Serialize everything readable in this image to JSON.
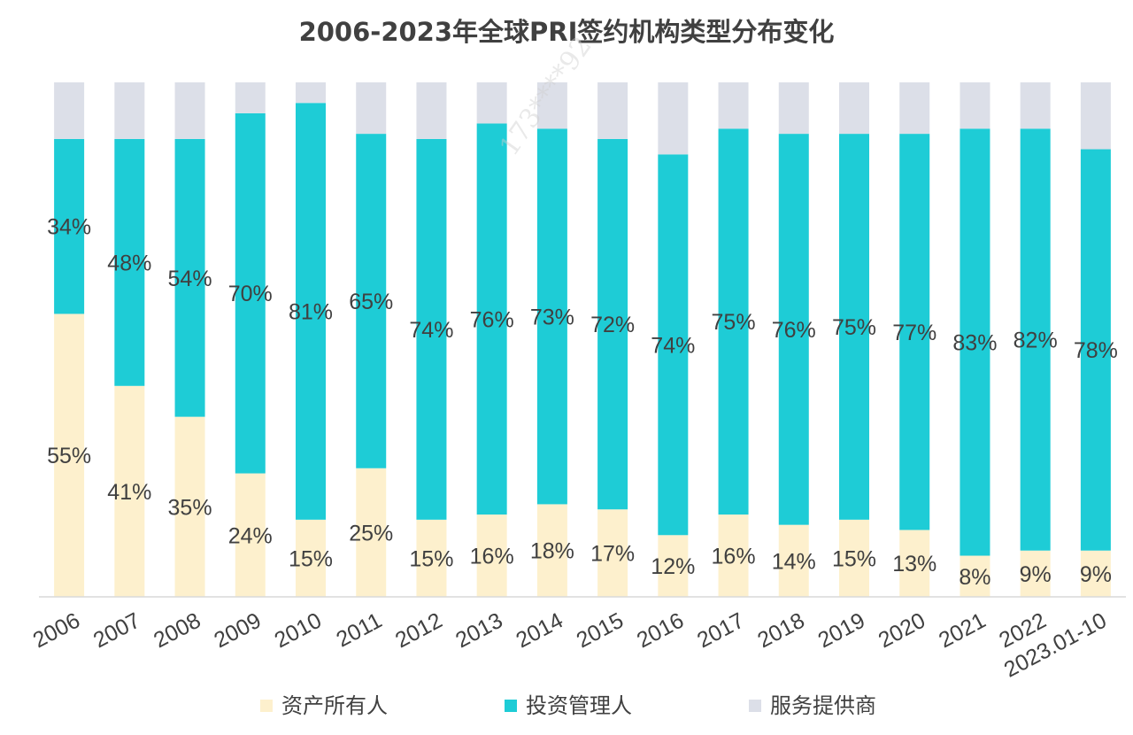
{
  "chart_data": {
    "type": "bar",
    "stacked": true,
    "percent_stacked": true,
    "title": "2006-2023年全球PRI签约机构类型分布变化",
    "categories": [
      "2006",
      "2007",
      "2008",
      "2009",
      "2010",
      "2011",
      "2012",
      "2013",
      "2014",
      "2015",
      "2016",
      "2017",
      "2018",
      "2019",
      "2020",
      "2021",
      "2022",
      "2023.01-10"
    ],
    "series": [
      {
        "name": "资产所有人",
        "color": "#FDF0CD",
        "values": [
          55,
          41,
          35,
          24,
          15,
          25,
          15,
          16,
          18,
          17,
          12,
          16,
          14,
          15,
          13,
          8,
          9,
          9
        ],
        "labels": [
          "55%",
          "41%",
          "35%",
          "24%",
          "15%",
          "25%",
          "15%",
          "16%",
          "18%",
          "17%",
          "12%",
          "16%",
          "14%",
          "15%",
          "13%",
          "8%",
          "9%",
          "9%"
        ]
      },
      {
        "name": "投资管理人",
        "color": "#1ECCD6",
        "values": [
          34,
          48,
          54,
          70,
          81,
          65,
          74,
          76,
          73,
          72,
          74,
          75,
          76,
          75,
          77,
          83,
          82,
          78
        ],
        "labels": [
          "34%",
          "48%",
          "54%",
          "70%",
          "81%",
          "65%",
          "74%",
          "76%",
          "73%",
          "72%",
          "74%",
          "75%",
          "76%",
          "75%",
          "77%",
          "83%",
          "82%",
          "78%"
        ]
      },
      {
        "name": "服务提供商",
        "color": "#DCDFE8",
        "values": [
          11,
          11,
          11,
          6,
          4,
          10,
          11,
          8,
          9,
          11,
          14,
          9,
          10,
          10,
          10,
          9,
          9,
          13
        ]
      }
    ],
    "ylim": [
      0,
      100
    ],
    "legend_position": "bottom",
    "watermark": "173****92"
  }
}
